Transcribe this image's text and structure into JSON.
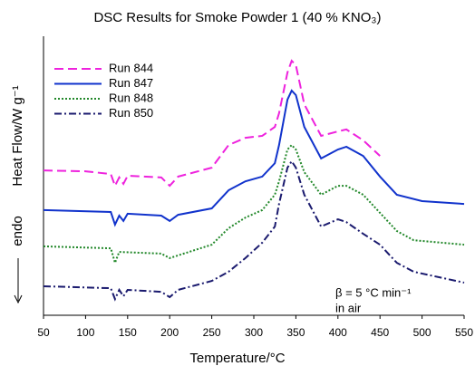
{
  "chart_data": {
    "type": "line",
    "title": "DSC Results for Smoke Powder 1 (40 % KNO₃)",
    "xlabel": "Temperature/°C",
    "ylabel": "Heat Flow/W g⁻¹",
    "annotations": [
      "endo",
      "β = 5 °C min⁻¹",
      "in air"
    ],
    "xlim": [
      50,
      550
    ],
    "xticks": [
      50,
      100,
      150,
      200,
      250,
      300,
      350,
      400,
      450,
      500,
      550
    ],
    "ylim": [
      0,
      100
    ],
    "legend": "upper left",
    "series": [
      {
        "name": "Run 844",
        "color": "#ee22dd",
        "dash": "dashed",
        "x": [
          50,
          100,
          130,
          135,
          140,
          145,
          150,
          190,
          200,
          210,
          250,
          270,
          290,
          310,
          325,
          330,
          340,
          345,
          350,
          360,
          380,
          400,
          410,
          430,
          450
        ],
        "values": [
          51.9,
          51.6,
          50.6,
          46.4,
          49.4,
          47.1,
          50,
          49.4,
          46.4,
          49.7,
          52.9,
          61,
          63.6,
          64.3,
          67.5,
          72.4,
          87,
          91.2,
          89.6,
          75.6,
          64.3,
          65.9,
          66.6,
          62.7,
          57.1
        ]
      },
      {
        "name": "Run 847",
        "color": "#1133cc",
        "dash": "solid",
        "x": [
          50,
          130,
          135,
          140,
          145,
          150,
          190,
          200,
          210,
          250,
          270,
          290,
          310,
          325,
          330,
          340,
          345,
          350,
          360,
          380,
          400,
          410,
          430,
          450,
          470,
          500,
          550
        ],
        "values": [
          37.7,
          37,
          32.5,
          35.7,
          33.8,
          36.4,
          35.7,
          33.8,
          36.0,
          38.3,
          44.8,
          48,
          49.7,
          54.5,
          61,
          77.3,
          80.5,
          78.9,
          67.5,
          56.2,
          59.4,
          60.4,
          57.1,
          49.7,
          43.2,
          40.9,
          39.9
        ]
      },
      {
        "name": "Run 848",
        "color": "#22882a",
        "dash": "dotted",
        "x": [
          50,
          130,
          135,
          140,
          190,
          200,
          250,
          270,
          290,
          310,
          325,
          330,
          340,
          345,
          350,
          360,
          380,
          400,
          410,
          430,
          450,
          470,
          490,
          550
        ],
        "values": [
          24.7,
          24,
          18.8,
          22.7,
          22.1,
          20.5,
          25.3,
          31.2,
          35,
          37.7,
          43.2,
          48,
          59.4,
          61,
          59.4,
          51.3,
          43.2,
          46.4,
          46.4,
          43.2,
          36.7,
          30.2,
          26.9,
          25.3
        ]
      },
      {
        "name": "Run 850",
        "color": "#1a1a6e",
        "dash": "dashdot",
        "x": [
          50,
          130,
          135,
          140,
          145,
          150,
          190,
          200,
          210,
          250,
          270,
          290,
          310,
          325,
          330,
          340,
          345,
          350,
          360,
          380,
          400,
          410,
          430,
          450,
          470,
          490,
          550
        ],
        "values": [
          10.4,
          9.7,
          5.8,
          9.1,
          6.8,
          9.1,
          8.4,
          6.5,
          9.1,
          12.3,
          15.6,
          20.5,
          26,
          31.8,
          39.9,
          52.9,
          55.2,
          52.9,
          43.2,
          31.8,
          34.4,
          33.4,
          29.2,
          25.3,
          18.8,
          15.6,
          11.7
        ]
      }
    ]
  }
}
